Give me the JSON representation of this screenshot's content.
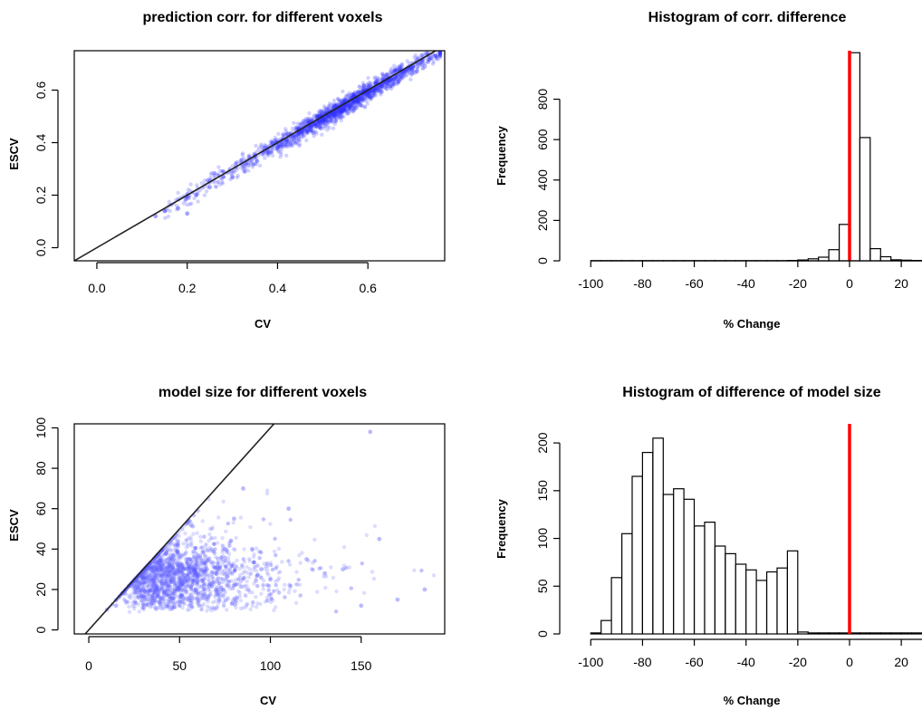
{
  "chart_data": [
    {
      "id": "scatter-corr",
      "type": "scatter",
      "title": "prediction corr. for different voxels",
      "xlabel": "CV",
      "ylabel": "ESCV",
      "xlim": [
        -0.05,
        0.77
      ],
      "ylim": [
        -0.05,
        0.75
      ],
      "xticks": [
        "0.0",
        "0.2",
        "0.4",
        "0.6"
      ],
      "xtick_values": [
        0.0,
        0.2,
        0.4,
        0.6
      ],
      "yticks": [
        "0.0",
        "0.2",
        "0.4",
        "0.6"
      ],
      "ytick_values": [
        0.0,
        0.2,
        0.4,
        0.6
      ],
      "reference_line": "y = x",
      "point_color": "#3333ff",
      "grid": false,
      "point_cloud": {
        "count": 1700,
        "x_range": [
          0.12,
          0.76
        ],
        "x_peak": 0.56,
        "relation": "close to y = x"
      },
      "points": [
        [
          0.13,
          0.12
        ],
        [
          0.15,
          0.14
        ],
        [
          0.18,
          0.15
        ],
        [
          0.2,
          0.13
        ],
        [
          0.22,
          0.2
        ],
        [
          0.25,
          0.23
        ],
        [
          0.28,
          0.27
        ],
        [
          0.3,
          0.27
        ],
        [
          0.33,
          0.32
        ],
        [
          0.35,
          0.35
        ],
        [
          0.38,
          0.36
        ],
        [
          0.4,
          0.38
        ],
        [
          0.42,
          0.41
        ],
        [
          0.45,
          0.44
        ],
        [
          0.48,
          0.47
        ],
        [
          0.5,
          0.49
        ],
        [
          0.52,
          0.51
        ],
        [
          0.55,
          0.54
        ],
        [
          0.58,
          0.57
        ],
        [
          0.6,
          0.59
        ],
        [
          0.62,
          0.61
        ],
        [
          0.65,
          0.64
        ],
        [
          0.68,
          0.67
        ],
        [
          0.7,
          0.69
        ],
        [
          0.72,
          0.71
        ],
        [
          0.75,
          0.73
        ]
      ]
    },
    {
      "id": "hist-corr",
      "type": "bar",
      "title": "Histogram of corr. difference",
      "xlabel": "% Change",
      "ylabel": "Frequency",
      "xlim": [
        -105,
        28
      ],
      "ylim": [
        0,
        1040
      ],
      "xticks": [
        "-100",
        "-80",
        "-60",
        "-40",
        "-20",
        "0",
        "20"
      ],
      "xtick_values": [
        -100,
        -80,
        -60,
        -40,
        -20,
        0,
        20
      ],
      "yticks": [
        "0",
        "200",
        "400",
        "600",
        "800"
      ],
      "ytick_values": [
        0,
        200,
        400,
        600,
        800
      ],
      "bin_width": 4,
      "bin_start": -100,
      "values": [
        1,
        1,
        1,
        1,
        1,
        1,
        1,
        1,
        1,
        1,
        1,
        1,
        1,
        1,
        1,
        1,
        1,
        1,
        1,
        2,
        4,
        10,
        18,
        55,
        180,
        1030,
        610,
        60,
        20,
        5,
        3,
        2
      ],
      "vline": 0,
      "vline_color": "#ff0000",
      "grid": false
    },
    {
      "id": "scatter-size",
      "type": "scatter",
      "title": "model size for different voxels",
      "xlabel": "CV",
      "ylabel": "ESCV",
      "xlim": [
        -8,
        196
      ],
      "ylim": [
        -2,
        102
      ],
      "xticks": [
        "0",
        "50",
        "100",
        "150"
      ],
      "xtick_values": [
        0,
        50,
        100,
        150
      ],
      "yticks": [
        "0",
        "20",
        "40",
        "60",
        "80",
        "100"
      ],
      "ytick_values": [
        0,
        20,
        40,
        60,
        80,
        100
      ],
      "reference_line": "y = x",
      "point_color": "#6666ff",
      "grid": false,
      "point_cloud": {
        "count": 2300,
        "x_range": [
          8,
          190
        ],
        "y_peak": 22,
        "relation": "mostly below y = x"
      },
      "points": [
        [
          10,
          10
        ],
        [
          15,
          12
        ],
        [
          20,
          18
        ],
        [
          25,
          22
        ],
        [
          30,
          20
        ],
        [
          35,
          25
        ],
        [
          40,
          30
        ],
        [
          45,
          28
        ],
        [
          50,
          22
        ],
        [
          55,
          35
        ],
        [
          60,
          24
        ],
        [
          65,
          30
        ],
        [
          70,
          20
        ],
        [
          75,
          40
        ],
        [
          80,
          55
        ],
        [
          85,
          70
        ],
        [
          90,
          40
        ],
        [
          95,
          30
        ],
        [
          100,
          25
        ],
        [
          110,
          60
        ],
        [
          120,
          35
        ],
        [
          130,
          28
        ],
        [
          140,
          30
        ],
        [
          150,
          12
        ],
        [
          155,
          98
        ],
        [
          160,
          45
        ],
        [
          170,
          15
        ],
        [
          185,
          20
        ]
      ]
    },
    {
      "id": "hist-size",
      "type": "bar",
      "title": "Histogram of difference of model size",
      "xlabel": "% Change",
      "ylabel": "Frequency",
      "xlim": [
        -105,
        28
      ],
      "ylim": [
        0,
        220
      ],
      "xticks": [
        "-100",
        "-80",
        "-60",
        "-40",
        "-20",
        "0",
        "20"
      ],
      "xtick_values": [
        -100,
        -80,
        -60,
        -40,
        -20,
        0,
        20
      ],
      "yticks": [
        "0",
        "50",
        "100",
        "150",
        "200"
      ],
      "ytick_values": [
        0,
        50,
        100,
        150,
        200
      ],
      "bin_width": 4,
      "bin_start": -100,
      "values": [
        1,
        14,
        59,
        105,
        165,
        190,
        205,
        146,
        152,
        141,
        113,
        117,
        92,
        84,
        73,
        67,
        56,
        65,
        69,
        87,
        2,
        1,
        1,
        1,
        1,
        1,
        1,
        1,
        1,
        1,
        1,
        1
      ],
      "vline": 0,
      "vline_color": "#ff0000",
      "grid": false
    }
  ]
}
